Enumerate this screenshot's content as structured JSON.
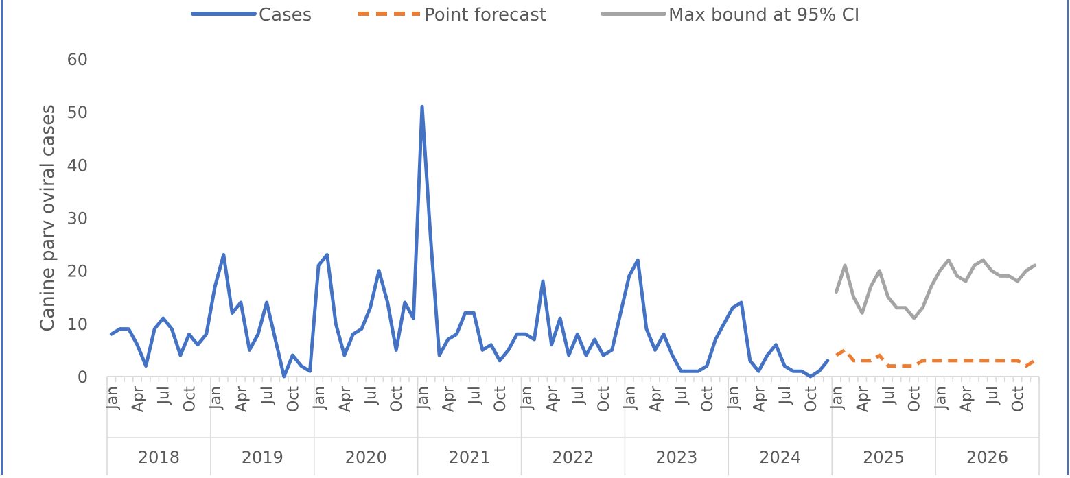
{
  "chart_data": {
    "type": "line",
    "title": "",
    "xlabel": "",
    "ylabel": "Canine parv oviral cases",
    "ylim": [
      0,
      60
    ],
    "yticks": [
      0,
      10,
      20,
      30,
      40,
      50,
      60
    ],
    "grid": false,
    "legend_position": "top",
    "years": [
      "2018",
      "2019",
      "2020",
      "2021",
      "2022",
      "2023",
      "2024",
      "2025",
      "2026"
    ],
    "month_ticks": [
      "Jan",
      "Apr",
      "Jul",
      "Oct"
    ],
    "series": [
      {
        "name": "Cases",
        "color": "#4472C4",
        "style": "solid",
        "start_index": 0,
        "values": [
          8,
          9,
          9,
          6,
          2,
          9,
          11,
          9,
          4,
          8,
          6,
          8,
          17,
          23,
          12,
          14,
          5,
          8,
          14,
          7,
          0,
          4,
          2,
          1,
          21,
          23,
          10,
          4,
          8,
          9,
          13,
          20,
          14,
          5,
          14,
          11,
          51,
          26,
          4,
          7,
          8,
          12,
          12,
          5,
          6,
          3,
          5,
          8,
          8,
          7,
          18,
          6,
          11,
          4,
          8,
          4,
          7,
          4,
          5,
          12,
          19,
          22,
          9,
          5,
          8,
          4,
          1,
          1,
          1,
          2,
          7,
          10,
          13,
          14,
          3,
          1,
          4,
          6,
          2,
          1,
          1,
          0,
          1,
          3
        ]
      },
      {
        "name": "Point forecast",
        "color": "#ED7D31",
        "style": "dashed",
        "start_index": 84,
        "values": [
          4,
          5,
          3,
          3,
          3,
          4,
          2,
          2,
          2,
          2,
          3,
          3,
          3,
          3,
          3,
          3,
          3,
          3,
          3,
          3,
          3,
          3,
          2,
          3
        ]
      },
      {
        "name": "Max bound at 95% CI",
        "color": "#A5A5A5",
        "style": "solid",
        "start_index": 84,
        "values": [
          16,
          21,
          15,
          12,
          17,
          20,
          15,
          13,
          13,
          11,
          13,
          17,
          20,
          22,
          19,
          18,
          21,
          22,
          20,
          19,
          19,
          18,
          20,
          21
        ]
      }
    ]
  }
}
